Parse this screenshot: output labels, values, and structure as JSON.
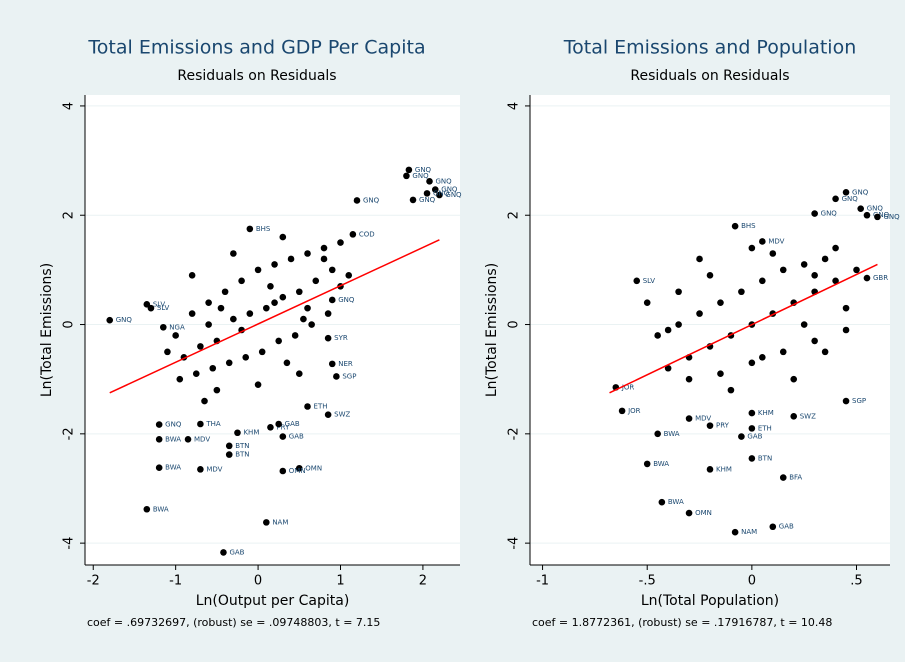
{
  "chart_data": [
    {
      "type": "scatter",
      "title": "Total Emissions and GDP Per Capita",
      "subtitle": "Residuals on Residuals",
      "x_label": "Ln(Output per Capita)",
      "y_label": "Ln(Total Emissions)",
      "note": "coef = .69732697, (robust) se = .09748803, t = 7.15",
      "xlim": [
        -2.1,
        2.45
      ],
      "ylim": [
        -4.4,
        4.2
      ],
      "xticks": [
        -2,
        -1,
        0,
        1,
        2
      ],
      "yticks": [
        -4,
        -2,
        0,
        2,
        4
      ],
      "grid": true,
      "color": "#000000",
      "label_color": "#1a476f",
      "x": [
        1.83,
        1.8,
        2.08,
        2.15,
        2.2,
        2.05,
        1.88,
        1.2,
        -1.8,
        -1.15,
        -1.35,
        -1.3,
        -0.1,
        1.15,
        0.9,
        0.85,
        0.9,
        0.95,
        0.85,
        0.6,
        0.15,
        0.25,
        0.3,
        -0.25,
        -0.7,
        -1.2,
        -1.2,
        -0.85,
        -0.35,
        -0.35,
        -1.2,
        -0.7,
        0.5,
        0.3,
        -1.35,
        0.1,
        -0.42,
        -0.9,
        -0.7,
        -0.5,
        -0.3,
        -0.1,
        0.1,
        0.3,
        0.5,
        0.7,
        0.9,
        -0.8,
        -0.6,
        -0.4,
        -0.2,
        0,
        0.2,
        0.4,
        0.6,
        0.8,
        1.0,
        -0.95,
        -0.75,
        -0.55,
        -0.35,
        -0.15,
        0.05,
        0.25,
        0.45,
        0.65,
        0.85,
        -1.0,
        -0.6,
        -0.2,
        0.2,
        0.6,
        1.0,
        -0.5,
        0,
        0.5,
        -0.8,
        -0.3,
        0.3,
        0.8,
        -1.1,
        1.1,
        -0.45,
        0.15,
        0.55,
        -0.65,
        0.35
      ],
      "values": [
        2.83,
        2.72,
        2.62,
        2.47,
        2.37,
        2.4,
        2.28,
        2.27,
        0.08,
        -0.05,
        0.37,
        0.3,
        1.75,
        1.65,
        0.45,
        -0.25,
        -0.72,
        -0.95,
        -1.65,
        -1.5,
        -1.88,
        -1.82,
        -2.05,
        -1.98,
        -1.82,
        -1.83,
        -2.1,
        -2.1,
        -2.22,
        -2.38,
        -2.62,
        -2.65,
        -2.63,
        -2.68,
        -3.38,
        -3.62,
        -4.17,
        -0.6,
        -0.4,
        -0.3,
        0.1,
        0.2,
        0.3,
        0.5,
        0.6,
        0.8,
        1.0,
        0.2,
        0.4,
        0.6,
        0.8,
        1.0,
        1.1,
        1.2,
        1.3,
        1.4,
        1.5,
        -1.0,
        -0.9,
        -0.8,
        -0.7,
        -0.6,
        -0.5,
        -0.3,
        -0.2,
        0.0,
        0.2,
        -0.2,
        0.0,
        -0.1,
        0.4,
        0.3,
        0.7,
        -1.2,
        -1.1,
        -0.9,
        0.9,
        1.3,
        1.6,
        1.2,
        -0.5,
        0.9,
        0.3,
        0.7,
        0.1,
        -1.4,
        -0.7
      ],
      "point_labels": [
        "GNQ",
        "GNQ",
        "GNQ",
        "GNQ",
        "GNQ",
        "GNQ",
        "GNQ",
        "GNQ",
        "GNQ",
        "NGA",
        "SLV",
        "SLV",
        "BHS",
        "COD",
        "GNQ",
        "SYR",
        "NER",
        "SGP",
        "SWZ",
        "ETH",
        "PRY",
        "GAB",
        "GAB",
        "KHM",
        "THA",
        "GNQ",
        "BWA",
        "MDV",
        "BTN",
        "BTN",
        "BWA",
        "MDV",
        "OMN",
        "OMN",
        "BWA",
        "NAM",
        "GAB",
        null,
        null,
        null,
        null,
        null,
        null,
        null,
        null,
        null,
        null,
        null,
        null,
        null,
        null,
        null,
        null,
        null,
        null,
        null,
        null,
        null,
        null,
        null,
        null,
        null,
        null,
        null,
        null,
        null,
        null,
        null,
        null,
        null,
        null,
        null,
        null,
        null,
        null,
        null,
        null,
        null,
        null,
        null,
        null,
        null,
        null,
        null,
        null,
        null,
        null
      ],
      "fit": {
        "color": "#ff0000",
        "x": [
          -1.8,
          2.2
        ],
        "values": [
          -1.25,
          1.55
        ]
      }
    },
    {
      "type": "scatter",
      "title": "Total Emissions and Population",
      "subtitle": "Residuals on Residuals",
      "x_label": "Ln(Total Population)",
      "y_label": "Ln(Total Emissions)",
      "note": "coef = 1.8772361, (robust) se = .17916787, t = 10.48",
      "xlim": [
        -1.06,
        0.66
      ],
      "ylim": [
        -4.4,
        4.2
      ],
      "xticks": [
        -1,
        {
          "value": -0.5,
          "label": "-.5"
        },
        0,
        {
          "value": 0.5,
          "label": ".5"
        }
      ],
      "yticks": [
        -4,
        -2,
        0,
        2,
        4
      ],
      "grid": true,
      "color": "#000000",
      "label_color": "#1a476f",
      "x": [
        0.45,
        0.4,
        0.52,
        0.55,
        0.6,
        0.3,
        -0.08,
        0.05,
        0.55,
        -0.55,
        -0.65,
        -0.62,
        0.0,
        0.2,
        0.45,
        -0.05,
        0.0,
        -0.5,
        -0.2,
        0.15,
        -0.43,
        -0.3,
        0.1,
        -0.08,
        -0.3,
        -0.2,
        0.0,
        -0.45,
        -0.4,
        -0.3,
        -0.2,
        -0.1,
        0,
        0.1,
        0.2,
        0.3,
        0.4,
        0.5,
        -0.35,
        -0.25,
        -0.15,
        -0.05,
        0.05,
        0.15,
        0.25,
        0.35,
        0.45,
        -0.45,
        -0.3,
        -0.15,
        0,
        0.15,
        0.3,
        0.45,
        -0.5,
        -0.2,
        0.1,
        0.4,
        -0.35,
        0.05,
        0.25,
        -0.1,
        0.2,
        0.35,
        -0.25,
        0.0,
        -0.4,
        0.3
      ],
      "values": [
        2.42,
        2.3,
        2.12,
        2.0,
        1.97,
        2.03,
        1.8,
        1.52,
        0.85,
        0.8,
        -1.15,
        -1.58,
        -1.62,
        -1.68,
        -1.4,
        -2.05,
        -2.45,
        -2.55,
        -2.65,
        -2.8,
        -3.25,
        -3.45,
        -3.7,
        -3.8,
        -1.72,
        -1.85,
        -1.9,
        -2.0,
        -0.8,
        -0.6,
        -0.4,
        -0.2,
        0.0,
        0.2,
        0.4,
        0.6,
        0.8,
        1.0,
        0.0,
        0.2,
        0.4,
        0.6,
        0.8,
        1.0,
        1.1,
        1.2,
        0.3,
        -0.2,
        -1.0,
        -0.9,
        -0.7,
        -0.5,
        -0.3,
        -0.1,
        0.4,
        0.9,
        1.3,
        1.4,
        0.6,
        -0.6,
        0.0,
        -1.2,
        -1.0,
        -0.5,
        1.2,
        1.4,
        -0.1,
        0.9
      ],
      "point_labels": [
        "GNQ",
        "GNQ",
        "GNQ",
        "GNQ",
        "GNQ",
        "GNQ",
        "BHS",
        "MDV",
        "GBR",
        "SLV",
        "JOR",
        "JOR",
        "KHM",
        "SWZ",
        "SGP",
        "GAB",
        "BTN",
        "BWA",
        "KHM",
        "BFA",
        "BWA",
        "OMN",
        "GAB",
        "NAM",
        "MDV",
        "PRY",
        "ETH",
        "BWA",
        null,
        null,
        null,
        null,
        null,
        null,
        null,
        null,
        null,
        null,
        null,
        null,
        null,
        null,
        null,
        null,
        null,
        null,
        null,
        null,
        null,
        null,
        null,
        null,
        null,
        null,
        null,
        null,
        null,
        null,
        null,
        null,
        null,
        null,
        null,
        null,
        null,
        null,
        null,
        null
      ],
      "fit": {
        "color": "#ff0000",
        "x": [
          -0.68,
          0.6
        ],
        "values": [
          -1.25,
          1.1
        ]
      }
    }
  ]
}
